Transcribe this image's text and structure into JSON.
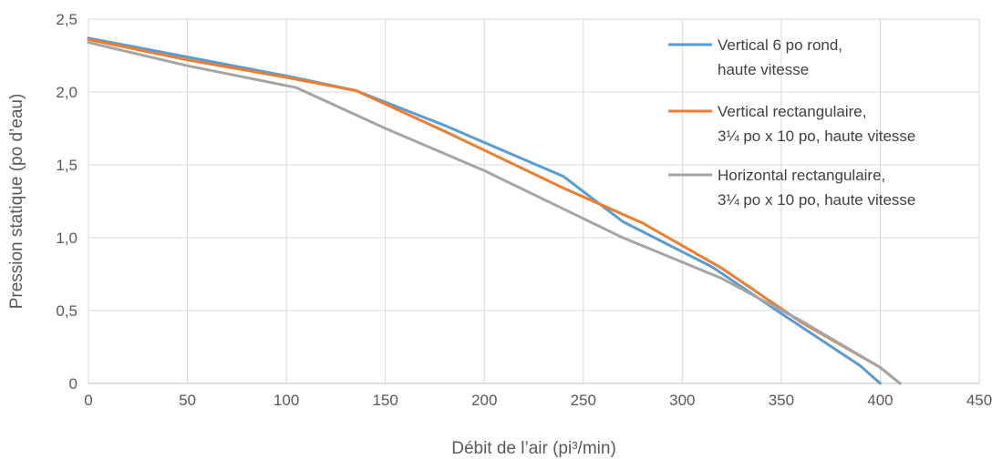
{
  "chart_data": {
    "type": "line",
    "title": "",
    "xlabel": "Débit de l’air (pi³/min)",
    "ylabel": "Pression statique (po d’eau)",
    "xlim": [
      0,
      450
    ],
    "ylim": [
      0,
      2.5
    ],
    "x_ticks": [
      "0",
      "50",
      "100",
      "150",
      "200",
      "250",
      "300",
      "350",
      "400",
      "450"
    ],
    "y_ticks": [
      "0",
      "0,5",
      "1,0",
      "1,5",
      "2,0",
      "2,5"
    ],
    "grid": true,
    "legend_position": "top-right",
    "series": [
      {
        "name_lines": [
          "Vertical 6 po rond,",
          "haute vitesse"
        ],
        "color": "#5b9bd5",
        "points": [
          [
            0,
            2.37
          ],
          [
            50,
            2.24
          ],
          [
            100,
            2.11
          ],
          [
            135,
            2.01
          ],
          [
            180,
            1.77
          ],
          [
            240,
            1.42
          ],
          [
            270,
            1.11
          ],
          [
            315,
            0.8
          ],
          [
            350,
            0.48
          ],
          [
            390,
            0.12
          ],
          [
            400,
            0.0
          ]
        ]
      },
      {
        "name_lines": [
          "Vertical rectangulaire,",
          "3¼ po x 10 po, haute vitesse"
        ],
        "color": "#ed7d31",
        "points": [
          [
            0,
            2.36
          ],
          [
            50,
            2.22
          ],
          [
            100,
            2.1
          ],
          [
            135,
            2.01
          ],
          [
            180,
            1.73
          ],
          [
            240,
            1.34
          ],
          [
            280,
            1.1
          ],
          [
            320,
            0.79
          ],
          [
            360,
            0.42
          ],
          [
            400,
            0.11
          ],
          [
            410,
            0.0
          ]
        ]
      },
      {
        "name_lines": [
          "Horizontal rectangulaire,",
          "3¼ po x 10 po, haute vitesse"
        ],
        "color": "#a5a5a5",
        "points": [
          [
            0,
            2.34
          ],
          [
            50,
            2.18
          ],
          [
            105,
            2.03
          ],
          [
            150,
            1.75
          ],
          [
            200,
            1.46
          ],
          [
            270,
            1.0
          ],
          [
            320,
            0.72
          ],
          [
            360,
            0.43
          ],
          [
            400,
            0.11
          ],
          [
            410,
            0.0
          ]
        ]
      }
    ]
  }
}
